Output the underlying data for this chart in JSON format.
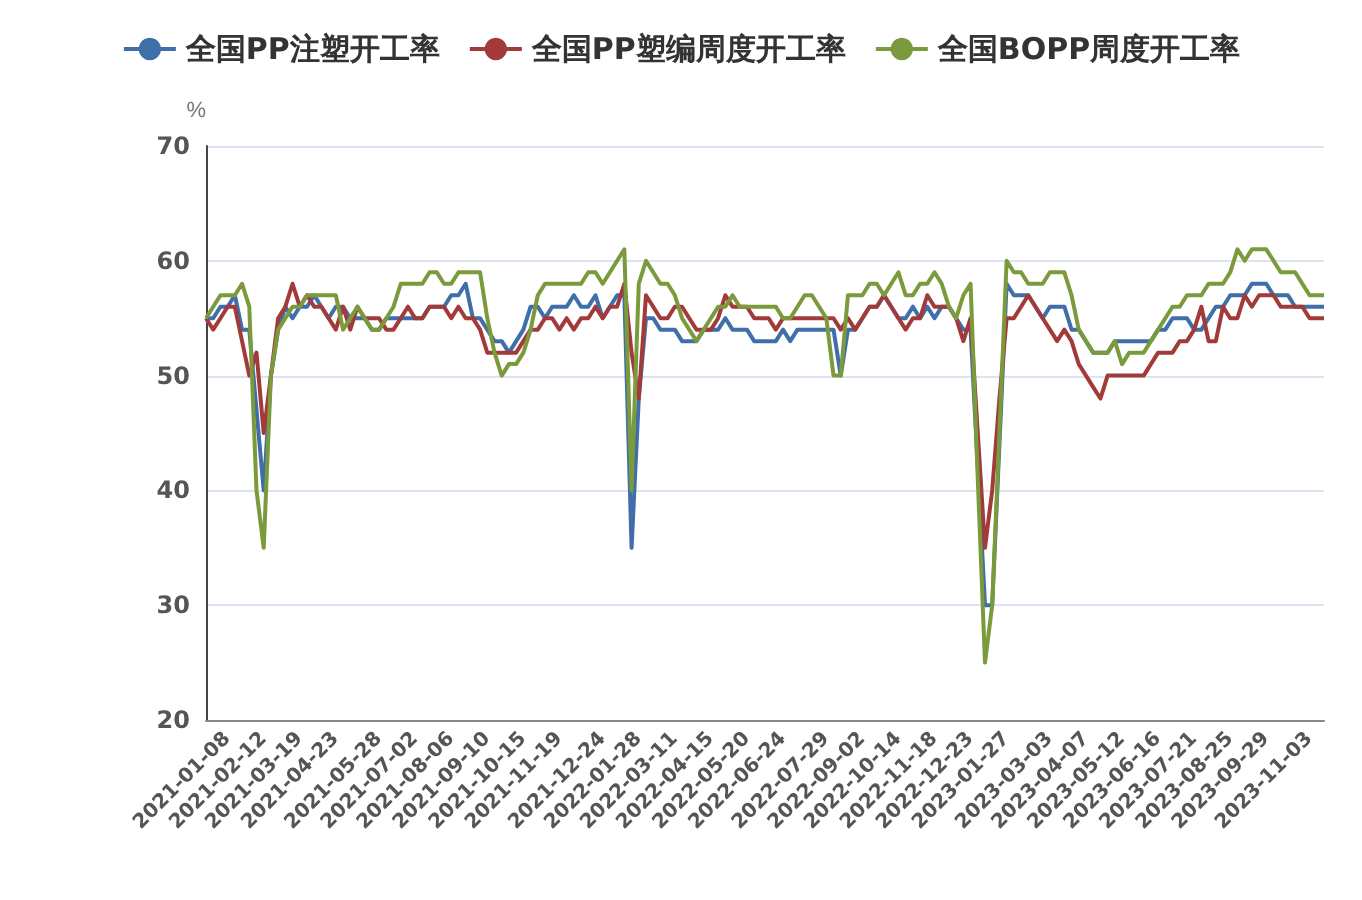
{
  "chart_data": {
    "type": "line",
    "ylabel": "%",
    "categories": [
      null,
      null,
      null,
      "2021-01-08",
      null,
      null,
      null,
      null,
      "2021-02-12",
      null,
      null,
      null,
      null,
      "2021-03-19",
      null,
      null,
      null,
      null,
      "2021-04-23",
      null,
      null,
      null,
      null,
      null,
      "2021-05-28",
      null,
      null,
      null,
      null,
      "2021-07-02",
      null,
      null,
      null,
      null,
      "2021-08-06",
      null,
      null,
      null,
      null,
      "2021-09-10",
      null,
      null,
      null,
      null,
      "2021-10-15",
      null,
      null,
      null,
      null,
      "2021-11-19",
      null,
      null,
      null,
      null,
      null,
      "2021-12-24",
      null,
      null,
      null,
      null,
      "2022-01-28",
      null,
      null,
      null,
      null,
      "2022-03-11",
      null,
      null,
      null,
      null,
      "2022-04-15",
      null,
      null,
      null,
      null,
      "2022-05-20",
      null,
      null,
      null,
      null,
      "2022-06-24",
      null,
      null,
      null,
      null,
      null,
      "2022-07-29",
      null,
      null,
      null,
      null,
      "2022-09-02",
      null,
      null,
      null,
      null,
      "2022-10-14",
      null,
      null,
      null,
      null,
      "2022-11-18",
      null,
      null,
      null,
      null,
      "2022-12-23",
      null,
      null,
      null,
      null,
      "2023-01-27",
      null,
      null,
      null,
      null,
      null,
      "2023-03-03",
      null,
      null,
      null,
      null,
      "2023-04-07",
      null,
      null,
      null,
      null,
      "2023-05-12",
      null,
      null,
      null,
      null,
      "2023-06-16",
      null,
      null,
      null,
      null,
      "2023-07-21",
      null,
      null,
      null,
      null,
      "2023-08-25",
      null,
      null,
      null,
      null,
      "2023-09-29",
      null,
      null,
      null,
      null,
      null,
      "2023-11-03",
      null,
      null
    ],
    "series": [
      {
        "name": "全国PP注塑开工率",
        "color": "#3f6ea8",
        "values": [
          55,
          55,
          56,
          56,
          57,
          54,
          54,
          47,
          40,
          50,
          54,
          56,
          55,
          56,
          56,
          57,
          56,
          55,
          56,
          56,
          55,
          55,
          55,
          54,
          54,
          55,
          55,
          55,
          55,
          55,
          55,
          56,
          56,
          56,
          57,
          57,
          58,
          55,
          55,
          54,
          53,
          53,
          52,
          53,
          54,
          56,
          56,
          55,
          56,
          56,
          56,
          57,
          56,
          56,
          57,
          55,
          56,
          57,
          57,
          35,
          48,
          55,
          55,
          54,
          54,
          54,
          53,
          53,
          53,
          54,
          54,
          54,
          55,
          54,
          54,
          54,
          53,
          53,
          53,
          53,
          54,
          53,
          54,
          54,
          54,
          54,
          54,
          54,
          50,
          54,
          54,
          55,
          56,
          56,
          57,
          56,
          55,
          55,
          56,
          55,
          56,
          55,
          56,
          56,
          55,
          54,
          54,
          42,
          30,
          30,
          44,
          58,
          57,
          57,
          57,
          56,
          55,
          56,
          56,
          56,
          54,
          54,
          53,
          52,
          52,
          52,
          53,
          53,
          53,
          53,
          53,
          53,
          54,
          54,
          55,
          55,
          55,
          54,
          54,
          55,
          56,
          56,
          57,
          57,
          57,
          58,
          58,
          58,
          57,
          57,
          57,
          56,
          56,
          56,
          56,
          56
        ]
      },
      {
        "name": "全国PP塑编周度开工率",
        "color": "#a33a3a",
        "values": [
          55,
          54,
          55,
          56,
          56,
          53,
          50,
          52,
          45,
          50,
          55,
          56,
          58,
          56,
          57,
          56,
          56,
          55,
          54,
          56,
          54,
          56,
          55,
          55,
          55,
          54,
          54,
          55,
          56,
          55,
          55,
          56,
          56,
          56,
          55,
          56,
          55,
          55,
          54,
          52,
          52,
          52,
          52,
          52,
          53,
          54,
          54,
          55,
          55,
          54,
          55,
          54,
          55,
          55,
          56,
          55,
          56,
          56,
          58,
          52,
          48,
          57,
          56,
          55,
          55,
          56,
          56,
          55,
          54,
          54,
          54,
          55,
          57,
          56,
          56,
          56,
          55,
          55,
          55,
          54,
          55,
          55,
          55,
          55,
          55,
          55,
          55,
          55,
          54,
          55,
          54,
          55,
          56,
          56,
          57,
          56,
          55,
          54,
          55,
          55,
          57,
          56,
          56,
          56,
          55,
          53,
          55,
          45,
          35,
          40,
          48,
          55,
          55,
          56,
          57,
          56,
          55,
          54,
          53,
          54,
          53,
          51,
          50,
          49,
          48,
          50,
          50,
          50,
          50,
          50,
          50,
          51,
          52,
          52,
          52,
          53,
          53,
          54,
          56,
          53,
          53,
          56,
          55,
          55,
          57,
          56,
          57,
          57,
          57,
          56,
          56,
          56,
          56,
          55,
          55,
          55
        ]
      },
      {
        "name": "全国BOPP周度开工率",
        "color": "#7a9a3c",
        "values": [
          55,
          56,
          57,
          57,
          57,
          58,
          56,
          40,
          35,
          50,
          54,
          55,
          56,
          56,
          57,
          57,
          57,
          57,
          57,
          54,
          55,
          56,
          55,
          54,
          54,
          55,
          56,
          58,
          58,
          58,
          58,
          59,
          59,
          58,
          58,
          59,
          59,
          59,
          59,
          55,
          52,
          50,
          51,
          51,
          52,
          54,
          57,
          58,
          58,
          58,
          58,
          58,
          58,
          59,
          59,
          58,
          59,
          60,
          61,
          40,
          58,
          60,
          59,
          58,
          58,
          57,
          55,
          54,
          53,
          54,
          55,
          56,
          56,
          57,
          56,
          56,
          56,
          56,
          56,
          56,
          55,
          55,
          56,
          57,
          57,
          56,
          55,
          50,
          50,
          57,
          57,
          57,
          58,
          58,
          57,
          58,
          59,
          57,
          57,
          58,
          58,
          59,
          58,
          56,
          55,
          57,
          58,
          41,
          25,
          30,
          45,
          60,
          59,
          59,
          58,
          58,
          58,
          59,
          59,
          59,
          57,
          54,
          53,
          52,
          52,
          52,
          53,
          51,
          52,
          52,
          52,
          53,
          54,
          55,
          56,
          56,
          57,
          57,
          57,
          58,
          58,
          58,
          59,
          61,
          60,
          61,
          61,
          61,
          60,
          59,
          59,
          59,
          58,
          57,
          57,
          57
        ]
      }
    ],
    "ylim": [
      20,
      70
    ],
    "yticks": [
      20,
      30,
      40,
      50,
      60,
      70
    ],
    "grid": "y",
    "legend": "top",
    "marker": "none",
    "line_style": "solid"
  }
}
